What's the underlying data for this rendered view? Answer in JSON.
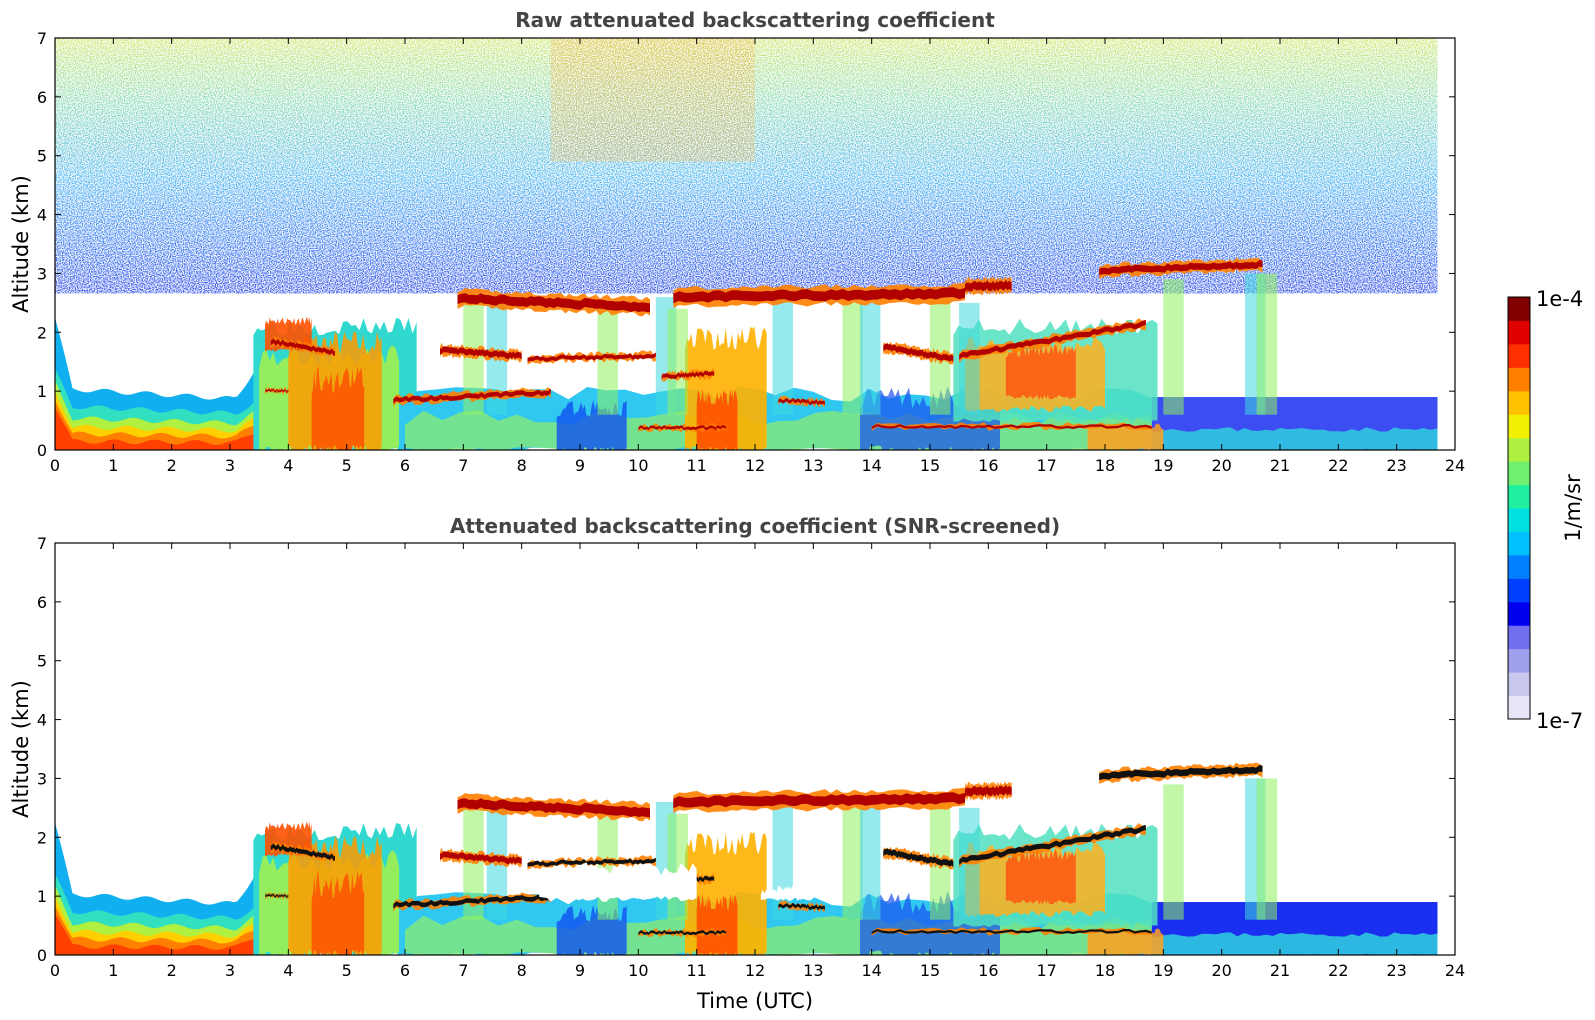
{
  "chart_data": [
    {
      "type": "heatmap",
      "title": "Raw attenuated backscattering coefficient",
      "xlabel": "",
      "ylabel": "Altitude (km)",
      "xlim": [
        0,
        24
      ],
      "ylim": [
        0,
        7
      ],
      "xticks": [
        "0",
        "1",
        "2",
        "3",
        "4",
        "5",
        "6",
        "7",
        "8",
        "9",
        "10",
        "11",
        "12",
        "13",
        "14",
        "15",
        "16",
        "17",
        "18",
        "19",
        "20",
        "21",
        "22",
        "23",
        "24"
      ],
      "yticks": [
        "0",
        "1",
        "2",
        "3",
        "4",
        "5",
        "6",
        "7"
      ],
      "data_end_time": 23.7,
      "features": [
        {
          "kind": "boundary-layer",
          "t0": 0,
          "t1": 3.4,
          "z0": 0,
          "z1": 1.1
        },
        {
          "kind": "aerosol-layer",
          "t0": 3.4,
          "t1": 5.9,
          "z0": 0,
          "z1": 2.1
        },
        {
          "kind": "cloud",
          "t0": 6.9,
          "t1": 10.2,
          "z": 2.5
        },
        {
          "kind": "cloud",
          "t0": 10.5,
          "t1": 15.6,
          "z": 2.62
        },
        {
          "kind": "cloud",
          "t0": 17.8,
          "t1": 20.6,
          "z": 3.07
        },
        {
          "kind": "cloud",
          "t0": 14.2,
          "t1": 18.7,
          "z": 1.5,
          "z_end": 2.1
        },
        {
          "kind": "cloud",
          "t0": 6.6,
          "t1": 10.3,
          "z": 1.6
        },
        {
          "kind": "cloud",
          "t0": 5.8,
          "t1": 8.5,
          "z": 0.9
        }
      ]
    },
    {
      "type": "heatmap",
      "title": "Attenuated backscattering coefficient (SNR-screened)",
      "xlabel": "Time (UTC)",
      "ylabel": "Altitude (km)",
      "xlim": [
        0,
        24
      ],
      "ylim": [
        0,
        7
      ],
      "xticks": [
        "0",
        "1",
        "2",
        "3",
        "4",
        "5",
        "6",
        "7",
        "8",
        "9",
        "10",
        "11",
        "12",
        "13",
        "14",
        "15",
        "16",
        "17",
        "18",
        "19",
        "20",
        "21",
        "22",
        "23",
        "24"
      ],
      "yticks": [
        "0",
        "1",
        "2",
        "3",
        "4",
        "5",
        "6",
        "7"
      ],
      "data_end_time": 23.7
    }
  ],
  "colorbar": {
    "max_label": "1e-4",
    "min_label": "1e-7",
    "unit_label": "1/m/sr",
    "colors": [
      "#e6e6f6",
      "#c8c8ee",
      "#a0a0ec",
      "#7070ee",
      "#0000f0",
      "#0040ff",
      "#0080ff",
      "#00c0ff",
      "#00e0e0",
      "#20f0a0",
      "#70f070",
      "#b0f040",
      "#f0f000",
      "#ffc000",
      "#ff8000",
      "#ff3000",
      "#e00000",
      "#800000"
    ]
  }
}
